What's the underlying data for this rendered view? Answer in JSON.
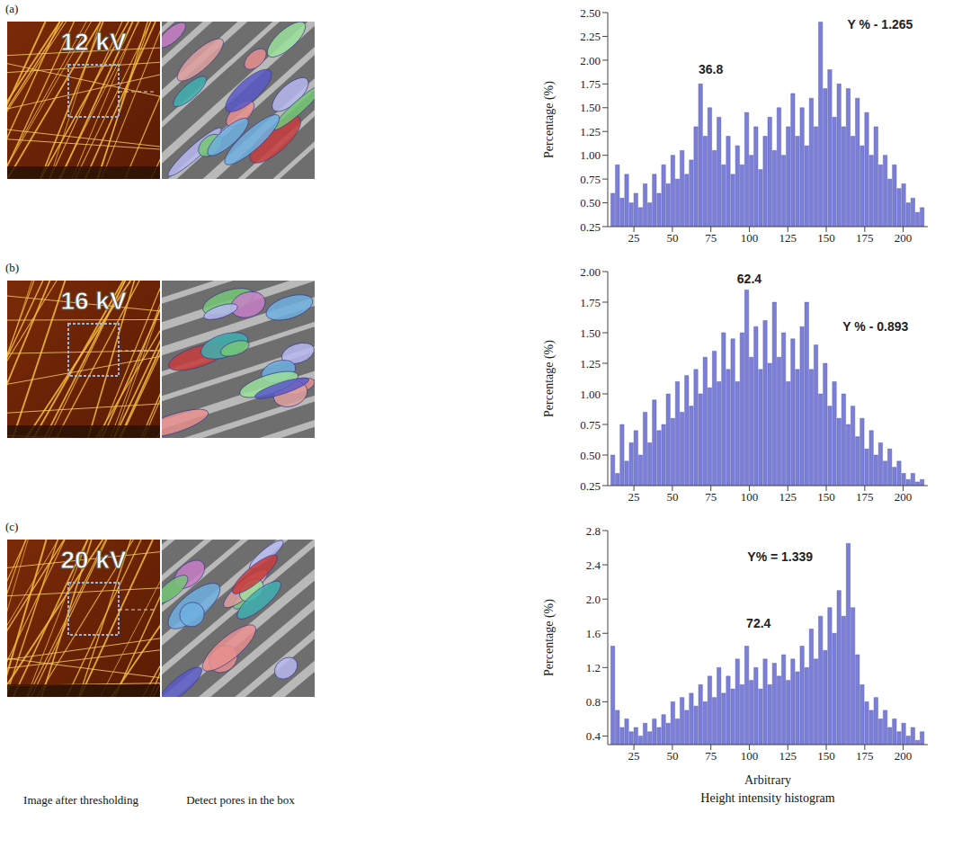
{
  "captions": [
    "Image after thresholding",
    "Detect pores in the box",
    "Height intensity histogram"
  ],
  "chart_data": [
    {
      "type": "histogram",
      "panel": "(a)",
      "image_label": "12 kV",
      "y_label": "Percentage (%)",
      "color": "#7b7fd8",
      "grid": false,
      "bins": [
        10,
        13,
        16,
        19,
        22,
        25,
        28,
        31,
        34,
        37,
        40,
        43,
        46,
        49,
        52,
        55,
        58,
        61,
        64,
        67,
        70,
        73,
        76,
        79,
        82,
        85,
        88,
        91,
        94,
        97,
        100,
        103,
        106,
        109,
        112,
        115,
        118,
        121,
        124,
        127,
        130,
        133,
        136,
        139,
        142,
        145,
        148,
        151,
        154,
        157,
        160,
        163,
        166,
        169,
        172,
        175,
        178,
        181,
        184,
        187,
        190,
        193,
        196,
        199,
        202,
        205,
        208,
        211,
        214
      ],
      "values": [
        0.6,
        0.9,
        0.55,
        0.8,
        0.5,
        0.6,
        0.45,
        0.7,
        0.5,
        0.8,
        0.6,
        0.9,
        0.7,
        1.0,
        0.75,
        1.05,
        0.8,
        0.95,
        1.3,
        1.75,
        1.2,
        1.5,
        1.05,
        1.4,
        0.9,
        1.2,
        0.8,
        1.1,
        0.9,
        1.45,
        1.0,
        1.3,
        0.85,
        1.2,
        1.4,
        1.05,
        1.5,
        1.0,
        1.3,
        1.65,
        1.2,
        1.5,
        1.1,
        1.6,
        1.3,
        2.4,
        1.7,
        1.9,
        1.4,
        1.75,
        1.3,
        1.7,
        1.2,
        1.6,
        1.1,
        1.45,
        1.0,
        1.3,
        0.9,
        1.0,
        0.75,
        0.9,
        0.65,
        0.7,
        0.5,
        0.55,
        0.4,
        0.45
      ],
      "xlim": [
        8,
        216
      ],
      "xticks": [
        25,
        50,
        75,
        100,
        125,
        150,
        175,
        200
      ],
      "ylim": [
        0.25,
        2.5
      ],
      "yticks": [
        0.25,
        {
          "value": 0.5,
          "label": "0.50"
        },
        0.75,
        {
          "value": 1,
          "label": "1.00"
        },
        1.25,
        {
          "value": 1.5,
          "label": "1.50"
        },
        1.75,
        {
          "value": 2,
          "label": "2.00"
        },
        2.25,
        {
          "value": 2.5,
          "label": "2.50"
        }
      ],
      "annotations": [
        {
          "text": "36.8",
          "x": 75,
          "y": 1.9
        },
        {
          "text": "Y % - 1.265",
          "x": 185,
          "y": 2.38
        }
      ]
    },
    {
      "type": "histogram",
      "panel": "(b)",
      "image_label": "16 kV",
      "y_label": "Percentage (%)",
      "color": "#7b7fd8",
      "grid": false,
      "bins": [
        10,
        13,
        16,
        19,
        22,
        25,
        28,
        31,
        34,
        37,
        40,
        43,
        46,
        49,
        52,
        55,
        58,
        61,
        64,
        67,
        70,
        73,
        76,
        79,
        82,
        85,
        88,
        91,
        94,
        97,
        100,
        103,
        106,
        109,
        112,
        115,
        118,
        121,
        124,
        127,
        130,
        133,
        136,
        139,
        142,
        145,
        148,
        151,
        154,
        157,
        160,
        163,
        166,
        169,
        172,
        175,
        178,
        181,
        184,
        187,
        190,
        193,
        196,
        199,
        202,
        205,
        208,
        211,
        214
      ],
      "values": [
        0.5,
        0.35,
        0.75,
        0.45,
        0.6,
        0.7,
        0.5,
        0.85,
        0.6,
        0.95,
        0.7,
        0.75,
        1.0,
        0.8,
        1.1,
        0.85,
        1.15,
        0.9,
        1.2,
        1.0,
        1.3,
        1.05,
        1.35,
        1.1,
        1.5,
        1.2,
        1.45,
        1.1,
        1.5,
        1.85,
        1.3,
        1.55,
        1.2,
        1.6,
        1.25,
        1.75,
        1.3,
        1.5,
        1.1,
        1.45,
        1.2,
        1.55,
        1.75,
        1.2,
        1.4,
        1.0,
        1.25,
        0.9,
        1.1,
        0.8,
        1.0,
        0.75,
        0.9,
        0.65,
        0.8,
        0.55,
        0.7,
        0.5,
        0.6,
        0.45,
        0.55,
        0.4,
        0.45,
        0.35,
        0.3,
        0.35,
        0.28,
        0.3
      ],
      "xlim": [
        8,
        216
      ],
      "xticks": [
        25,
        50,
        75,
        100,
        125,
        150,
        175,
        200
      ],
      "ylim": [
        0.25,
        2
      ],
      "yticks": [
        0.25,
        {
          "value": 0.5,
          "label": "0.50"
        },
        0.75,
        {
          "value": 1,
          "label": "1.00"
        },
        1.25,
        {
          "value": 1.5,
          "label": "1.50"
        },
        1.75,
        {
          "value": 2,
          "label": "2.00"
        }
      ],
      "annotations": [
        {
          "text": "62.4",
          "x": 100,
          "y": 1.94
        },
        {
          "text": "Y % - 0.893",
          "x": 182,
          "y": 1.55
        }
      ]
    },
    {
      "type": "histogram",
      "panel": "(c)",
      "image_label": "20 kV",
      "y_label": "Percentage (%)",
      "x_label": "Arbitrary",
      "color": "#7b7fd8",
      "grid": false,
      "bins": [
        10,
        13,
        16,
        19,
        22,
        25,
        28,
        31,
        34,
        37,
        40,
        43,
        46,
        49,
        52,
        55,
        58,
        61,
        64,
        67,
        70,
        73,
        76,
        79,
        82,
        85,
        88,
        91,
        94,
        97,
        100,
        103,
        106,
        109,
        112,
        115,
        118,
        121,
        124,
        127,
        130,
        133,
        136,
        139,
        142,
        145,
        148,
        151,
        154,
        157,
        160,
        163,
        166,
        169,
        172,
        175,
        178,
        181,
        184,
        187,
        190,
        193,
        196,
        199,
        202,
        205,
        208,
        211,
        214
      ],
      "values": [
        1.45,
        0.7,
        0.5,
        0.6,
        0.45,
        0.5,
        0.4,
        0.55,
        0.45,
        0.6,
        0.5,
        0.65,
        0.55,
        0.8,
        0.6,
        0.85,
        0.7,
        0.9,
        0.75,
        1.0,
        0.8,
        1.1,
        0.85,
        1.2,
        0.9,
        1.1,
        0.95,
        1.3,
        1.0,
        1.45,
        1.05,
        1.2,
        0.95,
        1.3,
        1.0,
        1.25,
        1.1,
        1.35,
        1.05,
        1.3,
        1.15,
        1.45,
        1.2,
        1.65,
        1.3,
        1.8,
        1.4,
        1.9,
        1.6,
        2.1,
        1.8,
        2.65,
        1.9,
        1.35,
        1.0,
        0.8,
        0.7,
        0.85,
        0.6,
        0.7,
        0.5,
        0.6,
        0.45,
        0.55,
        0.4,
        0.5,
        0.35,
        0.45
      ],
      "xlim": [
        8,
        216
      ],
      "xticks": [
        25,
        50,
        75,
        100,
        125,
        150,
        175,
        200
      ],
      "ylim": [
        0.3,
        2.8
      ],
      "yticks": [
        0.4,
        0.8,
        1.2,
        1.6,
        {
          "value": 2,
          "label": "2.0"
        },
        2.4,
        2.8
      ],
      "annotations": [
        {
          "text": "Y% = 1.339",
          "x": 120,
          "y": 2.5
        },
        {
          "text": "72.4",
          "x": 106,
          "y": 1.72
        }
      ]
    }
  ]
}
